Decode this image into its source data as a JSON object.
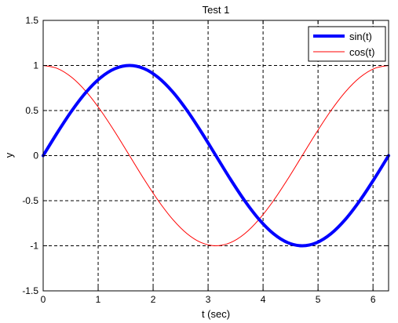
{
  "chart_data": {
    "type": "line",
    "title": "Test 1",
    "xlabel": "t (sec)",
    "ylabel": "y",
    "xlim": [
      0,
      6.2832
    ],
    "ylim": [
      -1.5,
      1.5
    ],
    "xticks": [
      0,
      1,
      2,
      3,
      4,
      5,
      6
    ],
    "xtick_labels": [
      "0",
      "1",
      "2",
      "3",
      "4",
      "5",
      "6"
    ],
    "yticks": [
      -1.5,
      -1,
      -0.5,
      0,
      0.5,
      1,
      1.5
    ],
    "ytick_labels": [
      "-1.5",
      "-1",
      "-0.5",
      "0",
      "0.5",
      "1",
      "1.5"
    ],
    "grid": true,
    "legend_position": "top-right",
    "x": [
      0,
      0.2618,
      0.5236,
      0.7854,
      1.0472,
      1.309,
      1.5708,
      1.8326,
      2.0944,
      2.3562,
      2.618,
      2.8798,
      3.1416,
      3.4034,
      3.6652,
      3.927,
      4.1888,
      4.4506,
      4.7124,
      4.9742,
      5.236,
      5.4978,
      5.7596,
      6.0214,
      6.2832
    ],
    "series": [
      {
        "name": "sin(t)",
        "color": "#0000ff",
        "line_style": "thick",
        "values": [
          0,
          0.2588,
          0.5,
          0.7071,
          0.866,
          0.9659,
          1,
          0.9659,
          0.866,
          0.7071,
          0.5,
          0.2588,
          0,
          -0.2588,
          -0.5,
          -0.7071,
          -0.866,
          -0.9659,
          -1,
          -0.9659,
          -0.866,
          -0.7071,
          -0.5,
          -0.2588,
          0
        ]
      },
      {
        "name": "cos(t)",
        "color": "#ff0000",
        "line_style": "thin",
        "values": [
          1,
          0.9659,
          0.866,
          0.7071,
          0.5,
          0.2588,
          0,
          -0.2588,
          -0.5,
          -0.7071,
          -0.866,
          -0.9659,
          -1,
          -0.9659,
          -0.866,
          -0.7071,
          -0.5,
          -0.2588,
          0,
          0.2588,
          0.5,
          0.7071,
          0.866,
          0.9659,
          1
        ]
      }
    ]
  }
}
